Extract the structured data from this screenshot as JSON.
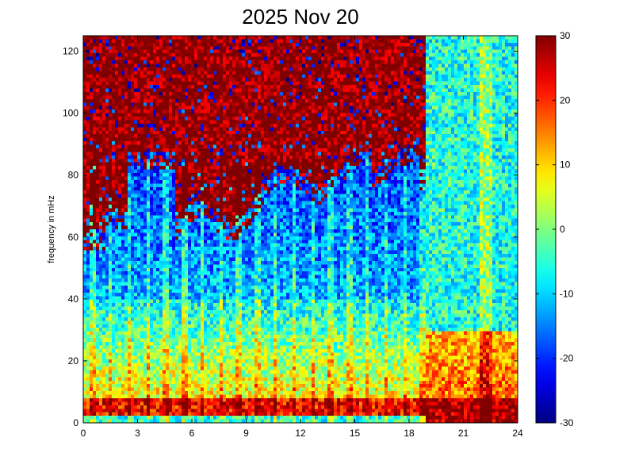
{
  "chart_data": {
    "type": "heatmap",
    "title": "2025 Nov 20",
    "xlabel": "",
    "ylabel": "frequency in mHz",
    "xlim": [
      0,
      24
    ],
    "ylim": [
      0,
      125
    ],
    "x_ticks": [
      "0",
      "3",
      "6",
      "9",
      "12",
      "15",
      "18",
      "21",
      "24"
    ],
    "y_ticks": [
      "0",
      "20",
      "40",
      "60",
      "80",
      "100",
      "120"
    ],
    "colorbar": {
      "colormap": "jet",
      "range": [
        -30,
        30
      ],
      "ticks": [
        "30",
        "20",
        "10",
        "0",
        "-10",
        "-20",
        "-30"
      ]
    },
    "grid": false,
    "notes_visible": "spectrogram: strong power below ~8 mHz all day; saturated (30) region above ~60 mHz from 0–18 h; broadband elevated power 19–24 h"
  },
  "colors": {
    "jet_low": "#00008f",
    "jet_high": "#800000"
  }
}
